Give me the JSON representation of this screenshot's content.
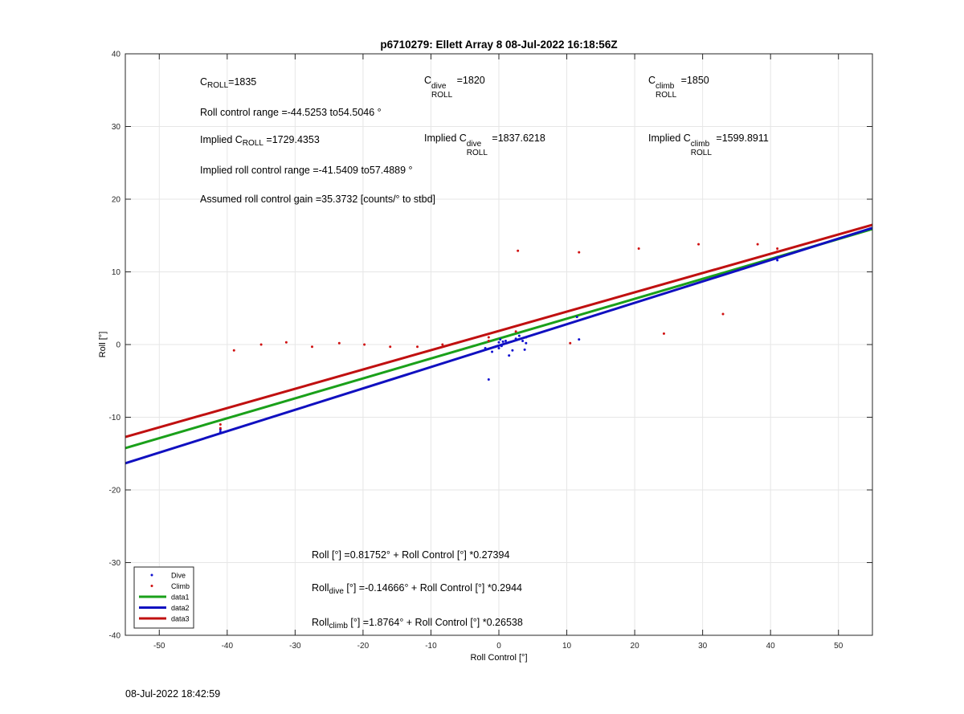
{
  "chart_data": {
    "type": "scatter",
    "title": "p6710279: Ellett Array 8 08-Jul-2022 16:18:56Z",
    "xlabel": "Roll Control [°]",
    "ylabel": "Roll [°]",
    "xlim": [
      -55,
      55
    ],
    "ylim": [
      -40,
      40
    ],
    "xticks": [
      -50,
      -40,
      -30,
      -20,
      -10,
      0,
      10,
      20,
      30,
      40,
      50
    ],
    "yticks": [
      -40,
      -30,
      -20,
      -10,
      0,
      10,
      20,
      30,
      40
    ],
    "grid": true,
    "legend_position": "bottom-left",
    "series": [
      {
        "name": "Dive",
        "kind": "points",
        "color": "#1010d0",
        "x": [
          -41,
          -41,
          -2,
          -1.5,
          -1,
          -0.5,
          0,
          0,
          0.2,
          0.4,
          0.6,
          1,
          1.5,
          2,
          2.5,
          3,
          3.5,
          3.8,
          4,
          4,
          11.5,
          11.8,
          41,
          41
        ],
        "y": [
          -12,
          -11.7,
          -0.5,
          -4.8,
          -1,
          -0.3,
          0.3,
          -0.5,
          0.7,
          -0.2,
          0.4,
          0.5,
          -1.5,
          -0.8,
          0.8,
          1.2,
          0.5,
          -0.7,
          1,
          0.2,
          3.8,
          0.7,
          12,
          11.6
        ]
      },
      {
        "name": "Climb",
        "kind": "points",
        "color": "#d01010",
        "x": [
          -41,
          -41,
          -39,
          -35,
          -31.3,
          -27.5,
          -23.5,
          -19.8,
          -16,
          -12,
          -8.3,
          -1.5,
          -1.5,
          2.5,
          2.8,
          10.5,
          11.8,
          20.6,
          24.3,
          29.4,
          33,
          38.1,
          41,
          41
        ],
        "y": [
          -11,
          -11.5,
          -0.8,
          0,
          0.3,
          -0.3,
          0.2,
          0,
          -0.3,
          -0.3,
          0,
          1,
          0.5,
          1.8,
          12.9,
          0.2,
          12.7,
          13.2,
          1.5,
          13.8,
          4.2,
          13.8,
          13.2,
          12.8
        ]
      },
      {
        "name": "data1",
        "kind": "line",
        "color": "#1aa01a",
        "intercept": 0.81752,
        "slope": 0.27394
      },
      {
        "name": "data2",
        "kind": "line",
        "color": "#1010c0",
        "intercept": -0.14666,
        "slope": 0.2944
      },
      {
        "name": "data3",
        "kind": "line",
        "color": "#c01010",
        "intercept": 1.8764,
        "slope": 0.26538
      }
    ]
  },
  "annotations": {
    "c_roll": {
      "base": "C",
      "sub": "ROLL",
      "value": "=1835"
    },
    "c_roll_dive": {
      "base": "C",
      "sup": "dive",
      "sub": "ROLL",
      "value": " =1820"
    },
    "c_roll_climb": {
      "base": "C",
      "sup": "climb",
      "sub": "ROLL",
      "value": " =1850"
    },
    "roll_control_range": "Roll control range =-44.5253 to54.5046 °",
    "implied_c_roll": {
      "prefix": "Implied C",
      "sub": "ROLL",
      "value": " =1729.4353"
    },
    "implied_c_roll_dive": {
      "prefix": "Implied C",
      "sup": "dive",
      "sub": "ROLL",
      "value": " =1837.6218"
    },
    "implied_c_roll_climb": {
      "prefix": "Implied C",
      "sup": "climb",
      "sub": "ROLL",
      "value": " =1599.8911"
    },
    "implied_roll_control_range": "Implied roll control range =-41.5409 to57.4889 °",
    "assumed_gain": "Assumed roll control gain =35.3732 [counts/° to stbd]",
    "fit_all": "Roll [°] =0.81752° + Roll Control [°] *0.27394",
    "fit_dive": {
      "prefix": "Roll",
      "sub": "dive",
      "value": " [°] =-0.14666° + Roll Control [°] *0.2944"
    },
    "fit_climb": {
      "prefix": "Roll",
      "sub": "climb",
      "value": " [°] =1.8764° + Roll Control [°] *0.26538"
    }
  },
  "footer": {
    "timestamp": "08-Jul-2022 18:42:59"
  }
}
